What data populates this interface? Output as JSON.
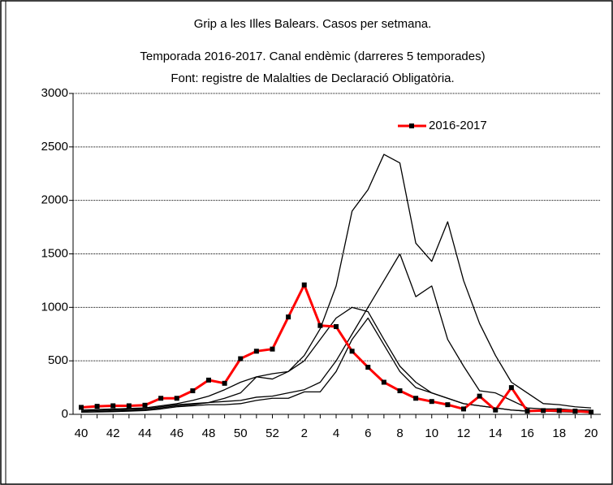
{
  "chart_data": {
    "type": "line",
    "title": "Grip a les Illes Balears.  Casos per setmana.",
    "subtitle": [
      "Temporada 2016-2017.  Canal endèmic (darreres 5 temporades)",
      "Font: registre de Malalties de Declaració Obligatòria."
    ],
    "categories": [
      "40",
      null,
      "42",
      null,
      "44",
      null,
      "46",
      null,
      "48",
      null,
      "50",
      null,
      "52",
      null,
      "2",
      null,
      "4",
      null,
      "6",
      null,
      "8",
      null,
      "10",
      null,
      "12",
      null,
      "14",
      null,
      "16",
      null,
      "18",
      null,
      "20"
    ],
    "series": [
      {
        "color": "#000000",
        "values": [
          40,
          45,
          50,
          55,
          60,
          80,
          100,
          130,
          170,
          230,
          300,
          350,
          330,
          400,
          550,
          800,
          1200,
          1900,
          2100,
          2430,
          2350,
          1600,
          1430,
          1800,
          1250,
          850,
          550,
          300,
          200,
          100,
          90,
          70,
          60
        ]
      },
      {
        "color": "#000000",
        "values": [
          30,
          35,
          40,
          45,
          50,
          70,
          90,
          100,
          110,
          120,
          130,
          160,
          170,
          200,
          230,
          300,
          500,
          750,
          1000,
          1250,
          1500,
          1100,
          1200,
          700,
          450,
          220,
          200,
          130,
          60,
          50,
          50,
          40,
          40
        ]
      },
      {
        "color": "#000000",
        "values": [
          20,
          25,
          30,
          35,
          40,
          60,
          80,
          90,
          110,
          150,
          200,
          350,
          380,
          400,
          500,
          700,
          900,
          1000,
          960,
          700,
          450,
          300,
          200,
          150,
          100,
          80,
          60,
          40,
          30,
          30,
          30,
          25,
          20
        ]
      },
      {
        "color": "#000000",
        "values": [
          20,
          22,
          25,
          30,
          35,
          50,
          70,
          80,
          90,
          90,
          100,
          130,
          150,
          150,
          210,
          210,
          400,
          700,
          900,
          650,
          400,
          250,
          200,
          150,
          100,
          80,
          60,
          40,
          30,
          30,
          25,
          20,
          20
        ]
      },
      {
        "name": "2016-2017",
        "color": "#ff0000",
        "markers": true,
        "values": [
          65,
          75,
          80,
          80,
          85,
          150,
          150,
          220,
          320,
          290,
          520,
          590,
          610,
          910,
          1210,
          830,
          820,
          590,
          440,
          300,
          220,
          150,
          120,
          90,
          50,
          170,
          40,
          250,
          30,
          35,
          35,
          30,
          20
        ]
      }
    ],
    "ylim": [
      0,
      3000
    ],
    "yticks": [
      0,
      500,
      1000,
      1500,
      2000,
      2500,
      3000
    ],
    "grid": true
  }
}
